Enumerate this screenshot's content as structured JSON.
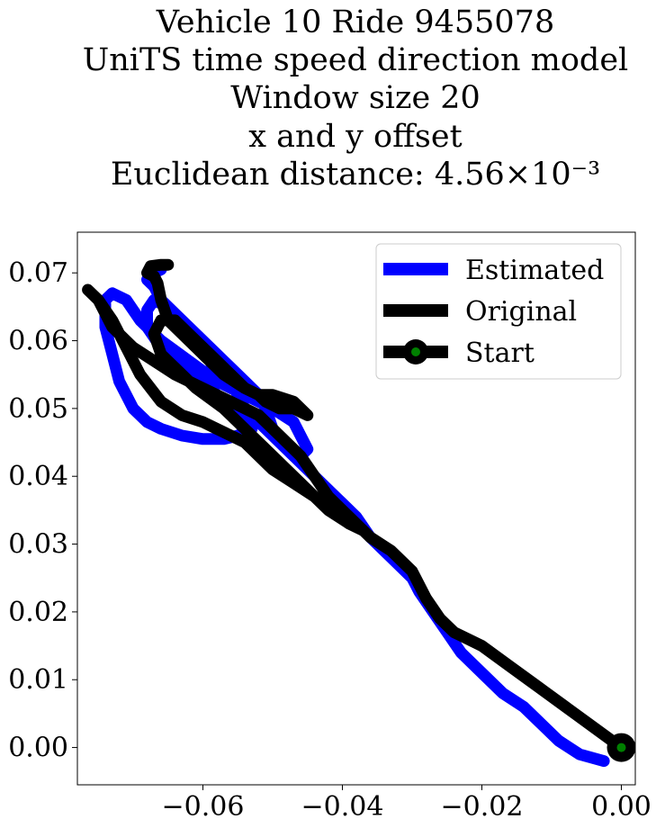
{
  "chart_data": {
    "type": "line",
    "title_lines": [
      "Vehicle 10 Ride 9455078",
      "UniTS time speed direction model",
      "Window size 20",
      "x and y offset",
      "Euclidean distance: 4.56×10⁻³"
    ],
    "xlabel": "",
    "ylabel": "",
    "xlim": [
      -0.078,
      0.002
    ],
    "ylim": [
      -0.0055,
      0.076
    ],
    "xticks": [
      -0.06,
      -0.04,
      -0.02,
      0.0
    ],
    "xtick_labels": [
      "−0.06",
      "−0.04",
      "−0.02",
      "0.00"
    ],
    "yticks": [
      0.0,
      0.01,
      0.02,
      0.03,
      0.04,
      0.05,
      0.06,
      0.07
    ],
    "ytick_labels": [
      "0.00",
      "0.01",
      "0.02",
      "0.03",
      "0.04",
      "0.05",
      "0.06",
      "0.07"
    ],
    "grid": false,
    "legend_position": "top-right",
    "series": [
      {
        "name": "Estimated",
        "color": "#0000ff",
        "x": [
          -0.0025,
          -0.006,
          -0.009,
          -0.011,
          -0.014,
          -0.017,
          -0.02,
          -0.023,
          -0.025,
          -0.027,
          -0.029,
          -0.03,
          -0.033,
          -0.036,
          -0.038,
          -0.04,
          -0.042,
          -0.044,
          -0.046,
          -0.048,
          -0.05,
          -0.052,
          -0.054,
          -0.055,
          -0.056,
          -0.058,
          -0.059,
          -0.06,
          -0.061,
          -0.063,
          -0.064,
          -0.066,
          -0.067,
          -0.068,
          -0.068,
          -0.066,
          -0.063,
          -0.059,
          -0.056,
          -0.054,
          -0.053,
          -0.055,
          -0.057,
          -0.06,
          -0.063,
          -0.066,
          -0.068,
          -0.07,
          -0.072,
          -0.073,
          -0.074,
          -0.074,
          -0.073,
          -0.071,
          -0.069,
          -0.066,
          -0.062,
          -0.058,
          -0.054,
          -0.05,
          -0.047,
          -0.046,
          -0.045,
          -0.046,
          -0.048,
          -0.05,
          -0.051,
          -0.052,
          -0.055,
          -0.058,
          -0.061,
          -0.064,
          -0.066,
          -0.067,
          -0.068,
          -0.067,
          -0.066
        ],
        "y": [
          -0.002,
          -0.001,
          0.001,
          0.003,
          0.006,
          0.008,
          0.011,
          0.014,
          0.017,
          0.02,
          0.023,
          0.025,
          0.028,
          0.031,
          0.034,
          0.036,
          0.038,
          0.04,
          0.042,
          0.044,
          0.046,
          0.048,
          0.05,
          0.052,
          0.054,
          0.055,
          0.057,
          0.058,
          0.06,
          0.062,
          0.064,
          0.0655,
          0.066,
          0.0645,
          0.062,
          0.059,
          0.056,
          0.053,
          0.05,
          0.048,
          0.047,
          0.046,
          0.0455,
          0.0455,
          0.046,
          0.047,
          0.048,
          0.05,
          0.054,
          0.058,
          0.062,
          0.066,
          0.067,
          0.066,
          0.063,
          0.06,
          0.057,
          0.054,
          0.052,
          0.05,
          0.048,
          0.046,
          0.044,
          0.043,
          0.044,
          0.047,
          0.05,
          0.052,
          0.055,
          0.058,
          0.061,
          0.064,
          0.066,
          0.068,
          0.069,
          0.07,
          0.0705
        ]
      },
      {
        "name": "Original",
        "color": "#000000",
        "x": [
          0.0,
          -0.004,
          -0.008,
          -0.012,
          -0.016,
          -0.02,
          -0.024,
          -0.026,
          -0.028,
          -0.03,
          -0.033,
          -0.036,
          -0.038,
          -0.041,
          -0.044,
          -0.047,
          -0.05,
          -0.052,
          -0.054,
          -0.056,
          -0.058,
          -0.06,
          -0.063,
          -0.066,
          -0.069,
          -0.071,
          -0.073,
          -0.075,
          -0.0765,
          -0.075,
          -0.073,
          -0.07,
          -0.067,
          -0.064,
          -0.06,
          -0.056,
          -0.052,
          -0.049,
          -0.046,
          -0.044,
          -0.042,
          -0.04,
          -0.038,
          -0.037,
          -0.039,
          -0.042,
          -0.045,
          -0.049,
          -0.053,
          -0.057,
          -0.061,
          -0.064,
          -0.066,
          -0.067,
          -0.066,
          -0.064,
          -0.062,
          -0.059,
          -0.056,
          -0.054,
          -0.052,
          -0.051,
          -0.049,
          -0.047,
          -0.045,
          -0.047,
          -0.05,
          -0.052,
          -0.054,
          -0.057,
          -0.06,
          -0.063,
          -0.065,
          -0.066,
          -0.0665,
          -0.067,
          -0.068,
          -0.0675,
          -0.066,
          -0.065
        ],
        "y": [
          0.0,
          0.003,
          0.006,
          0.009,
          0.012,
          0.015,
          0.017,
          0.019,
          0.022,
          0.026,
          0.029,
          0.031,
          0.033,
          0.035,
          0.037,
          0.039,
          0.041,
          0.043,
          0.045,
          0.046,
          0.047,
          0.048,
          0.049,
          0.051,
          0.055,
          0.059,
          0.063,
          0.066,
          0.0675,
          0.066,
          0.062,
          0.059,
          0.057,
          0.055,
          0.053,
          0.051,
          0.049,
          0.046,
          0.043,
          0.04,
          0.037,
          0.035,
          0.033,
          0.032,
          0.033,
          0.035,
          0.038,
          0.042,
          0.046,
          0.05,
          0.053,
          0.056,
          0.058,
          0.061,
          0.063,
          0.063,
          0.061,
          0.058,
          0.055,
          0.053,
          0.052,
          0.051,
          0.05,
          0.05,
          0.049,
          0.051,
          0.052,
          0.052,
          0.053,
          0.055,
          0.058,
          0.061,
          0.063,
          0.066,
          0.0685,
          0.0695,
          0.07,
          0.071,
          0.0712,
          0.0712
        ]
      }
    ],
    "start_point": {
      "name": "Start",
      "x": 0.0,
      "y": 0.0,
      "color": "#008000"
    },
    "legend": [
      {
        "label": "Estimated",
        "color": "#0000ff",
        "kind": "line"
      },
      {
        "label": "Original",
        "color": "#000000",
        "kind": "line"
      },
      {
        "label": "Start",
        "color": "#000000",
        "marker_color": "#008000",
        "kind": "marker"
      }
    ]
  }
}
